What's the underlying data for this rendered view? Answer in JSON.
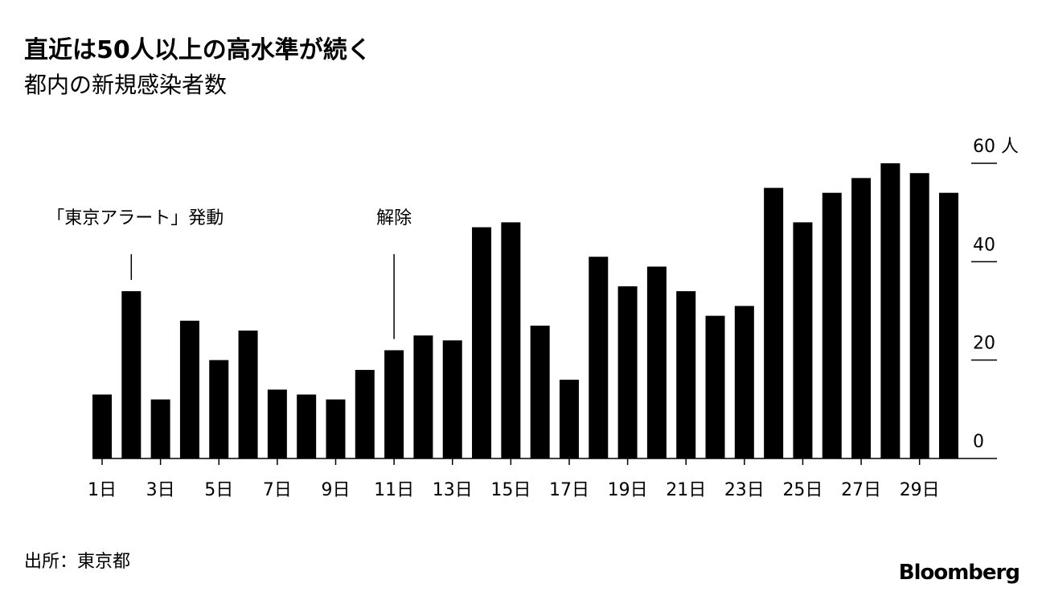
{
  "chart_data": {
    "type": "bar",
    "title": "直近は50人以上の高水準が続く",
    "subtitle": "都内の新規感染者数",
    "categories": [
      "1日",
      null,
      "3日",
      null,
      "5日",
      null,
      "7日",
      null,
      "9日",
      null,
      "11日",
      null,
      "13日",
      null,
      "15日",
      null,
      "17日",
      null,
      "19日",
      null,
      "21日",
      null,
      "23日",
      null,
      "25日",
      null,
      "27日",
      null,
      "29日",
      null
    ],
    "values": [
      13,
      34,
      12,
      28,
      20,
      26,
      14,
      13,
      12,
      18,
      22,
      25,
      24,
      47,
      48,
      27,
      16,
      41,
      35,
      39,
      34,
      29,
      31,
      55,
      48,
      54,
      57,
      60,
      58,
      54
    ],
    "color": "#000000",
    "ylim": [
      0,
      60
    ],
    "yticks": [
      0,
      20,
      40,
      {
        "value": 60,
        "label": "60 人"
      }
    ],
    "annotations": [
      "「東京アラート」発動",
      "解除"
    ],
    "source": "出所：東京都",
    "brand": "Bloomberg"
  }
}
